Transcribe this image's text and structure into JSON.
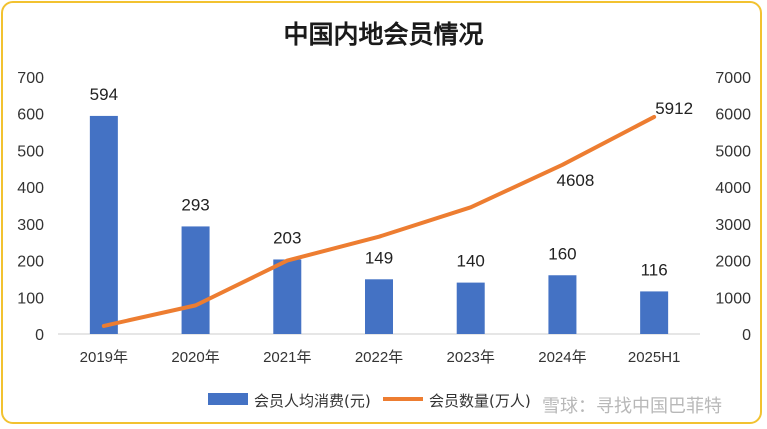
{
  "chart_data": {
    "type": "bar+line",
    "title": "中国内地会员情况",
    "categories": [
      "2019年",
      "2020年",
      "2021年",
      "2022年",
      "2023年",
      "2024年",
      "2025H1"
    ],
    "series": [
      {
        "name": "会员人均消费(元)",
        "type": "bar",
        "axis": "left",
        "values": [
          594,
          293,
          203,
          149,
          140,
          160,
          116
        ],
        "labels": [
          "594",
          "293",
          "203",
          "149",
          "140",
          "160",
          "116"
        ],
        "color": "#4472c4"
      },
      {
        "name": "会员数量(万人)",
        "type": "line",
        "axis": "right",
        "values": [
          220,
          780,
          2000,
          2650,
          3450,
          4608,
          5912
        ],
        "labels": [
          "",
          "",
          "",
          "",
          "",
          "4608",
          "5912"
        ],
        "color": "#ed7d31"
      }
    ],
    "left_axis": {
      "min": 0,
      "max": 700,
      "ticks": [
        "0",
        "100",
        "200",
        "300",
        "400",
        "500",
        "600",
        "700"
      ]
    },
    "right_axis": {
      "min": 0,
      "max": 7000,
      "ticks": [
        "0",
        "1000",
        "2000",
        "3000",
        "4000",
        "5000",
        "6000",
        "7000"
      ]
    },
    "legend_position": "bottom"
  },
  "legend": {
    "bar_label": "会员人均消费(元)",
    "line_label": "会员数量(万人)"
  },
  "watermark": "雪球：寻找中国巴菲特",
  "colors": {
    "frame": "#f2c230",
    "bar": "#4472c4",
    "line": "#ed7d31"
  }
}
